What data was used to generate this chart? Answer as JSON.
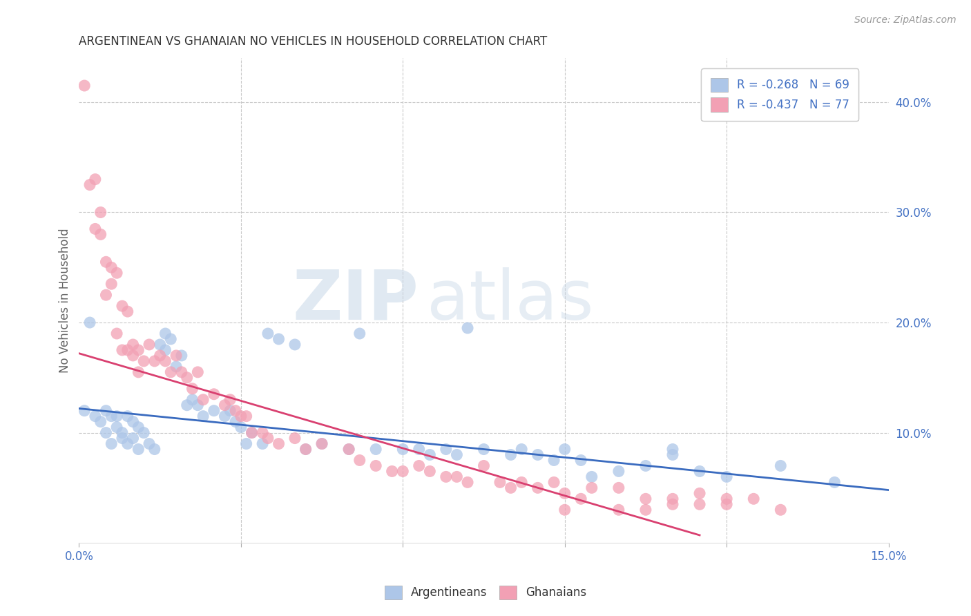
{
  "title": "ARGENTINEAN VS GHANAIAN NO VEHICLES IN HOUSEHOLD CORRELATION CHART",
  "source": "Source: ZipAtlas.com",
  "ylabel": "No Vehicles in Household",
  "xlim": [
    0.0,
    0.15
  ],
  "ylim": [
    0.0,
    0.44
  ],
  "yticks_right": [
    0.1,
    0.2,
    0.3,
    0.4
  ],
  "yticklabels_right": [
    "10.0%",
    "20.0%",
    "30.0%",
    "40.0%"
  ],
  "grid_color": "#c8c8c8",
  "background_color": "#ffffff",
  "argentinean_color": "#adc6e8",
  "ghanaian_color": "#f2a0b4",
  "argentinean_line_color": "#3a6bbf",
  "ghanaian_line_color": "#d94070",
  "legend_labels": [
    "Argentineans",
    "Ghanaians"
  ],
  "watermark_zip": "ZIP",
  "watermark_atlas": "atlas",
  "arg_scatter_x": [
    0.001,
    0.002,
    0.003,
    0.004,
    0.005,
    0.005,
    0.006,
    0.006,
    0.007,
    0.007,
    0.008,
    0.008,
    0.009,
    0.009,
    0.01,
    0.01,
    0.011,
    0.011,
    0.012,
    0.013,
    0.014,
    0.015,
    0.016,
    0.016,
    0.017,
    0.018,
    0.019,
    0.02,
    0.021,
    0.022,
    0.023,
    0.025,
    0.027,
    0.028,
    0.029,
    0.03,
    0.031,
    0.032,
    0.034,
    0.035,
    0.037,
    0.04,
    0.042,
    0.045,
    0.05,
    0.052,
    0.055,
    0.06,
    0.063,
    0.065,
    0.068,
    0.07,
    0.072,
    0.075,
    0.08,
    0.082,
    0.085,
    0.088,
    0.09,
    0.093,
    0.095,
    0.1,
    0.105,
    0.11,
    0.115,
    0.12,
    0.13,
    0.14,
    0.11
  ],
  "arg_scatter_y": [
    0.12,
    0.2,
    0.115,
    0.11,
    0.12,
    0.1,
    0.115,
    0.09,
    0.115,
    0.105,
    0.1,
    0.095,
    0.115,
    0.09,
    0.11,
    0.095,
    0.105,
    0.085,
    0.1,
    0.09,
    0.085,
    0.18,
    0.175,
    0.19,
    0.185,
    0.16,
    0.17,
    0.125,
    0.13,
    0.125,
    0.115,
    0.12,
    0.115,
    0.12,
    0.11,
    0.105,
    0.09,
    0.1,
    0.09,
    0.19,
    0.185,
    0.18,
    0.085,
    0.09,
    0.085,
    0.19,
    0.085,
    0.085,
    0.085,
    0.08,
    0.085,
    0.08,
    0.195,
    0.085,
    0.08,
    0.085,
    0.08,
    0.075,
    0.085,
    0.075,
    0.06,
    0.065,
    0.07,
    0.08,
    0.065,
    0.06,
    0.07,
    0.055,
    0.085
  ],
  "gha_scatter_x": [
    0.001,
    0.002,
    0.003,
    0.003,
    0.004,
    0.004,
    0.005,
    0.005,
    0.006,
    0.006,
    0.007,
    0.007,
    0.008,
    0.008,
    0.009,
    0.009,
    0.01,
    0.01,
    0.011,
    0.011,
    0.012,
    0.013,
    0.014,
    0.015,
    0.016,
    0.017,
    0.018,
    0.019,
    0.02,
    0.021,
    0.022,
    0.023,
    0.025,
    0.027,
    0.028,
    0.029,
    0.03,
    0.031,
    0.032,
    0.034,
    0.035,
    0.037,
    0.04,
    0.042,
    0.045,
    0.05,
    0.052,
    0.055,
    0.058,
    0.06,
    0.063,
    0.065,
    0.068,
    0.07,
    0.072,
    0.075,
    0.078,
    0.08,
    0.082,
    0.085,
    0.088,
    0.09,
    0.093,
    0.095,
    0.1,
    0.105,
    0.11,
    0.115,
    0.12,
    0.13,
    0.115,
    0.12,
    0.125,
    0.1,
    0.09,
    0.11,
    0.105
  ],
  "gha_scatter_y": [
    0.415,
    0.325,
    0.33,
    0.285,
    0.3,
    0.28,
    0.255,
    0.225,
    0.25,
    0.235,
    0.245,
    0.19,
    0.215,
    0.175,
    0.21,
    0.175,
    0.18,
    0.17,
    0.155,
    0.175,
    0.165,
    0.18,
    0.165,
    0.17,
    0.165,
    0.155,
    0.17,
    0.155,
    0.15,
    0.14,
    0.155,
    0.13,
    0.135,
    0.125,
    0.13,
    0.12,
    0.115,
    0.115,
    0.1,
    0.1,
    0.095,
    0.09,
    0.095,
    0.085,
    0.09,
    0.085,
    0.075,
    0.07,
    0.065,
    0.065,
    0.07,
    0.065,
    0.06,
    0.06,
    0.055,
    0.07,
    0.055,
    0.05,
    0.055,
    0.05,
    0.055,
    0.045,
    0.04,
    0.05,
    0.05,
    0.04,
    0.04,
    0.035,
    0.035,
    0.03,
    0.045,
    0.04,
    0.04,
    0.03,
    0.03,
    0.035,
    0.03
  ],
  "arg_line_x0": 0.0,
  "arg_line_x1": 0.15,
  "arg_line_y0": 0.122,
  "arg_line_y1": 0.048,
  "gha_line_x0": 0.0,
  "gha_line_x1": 0.115,
  "gha_line_y0": 0.172,
  "gha_line_y1": 0.007
}
